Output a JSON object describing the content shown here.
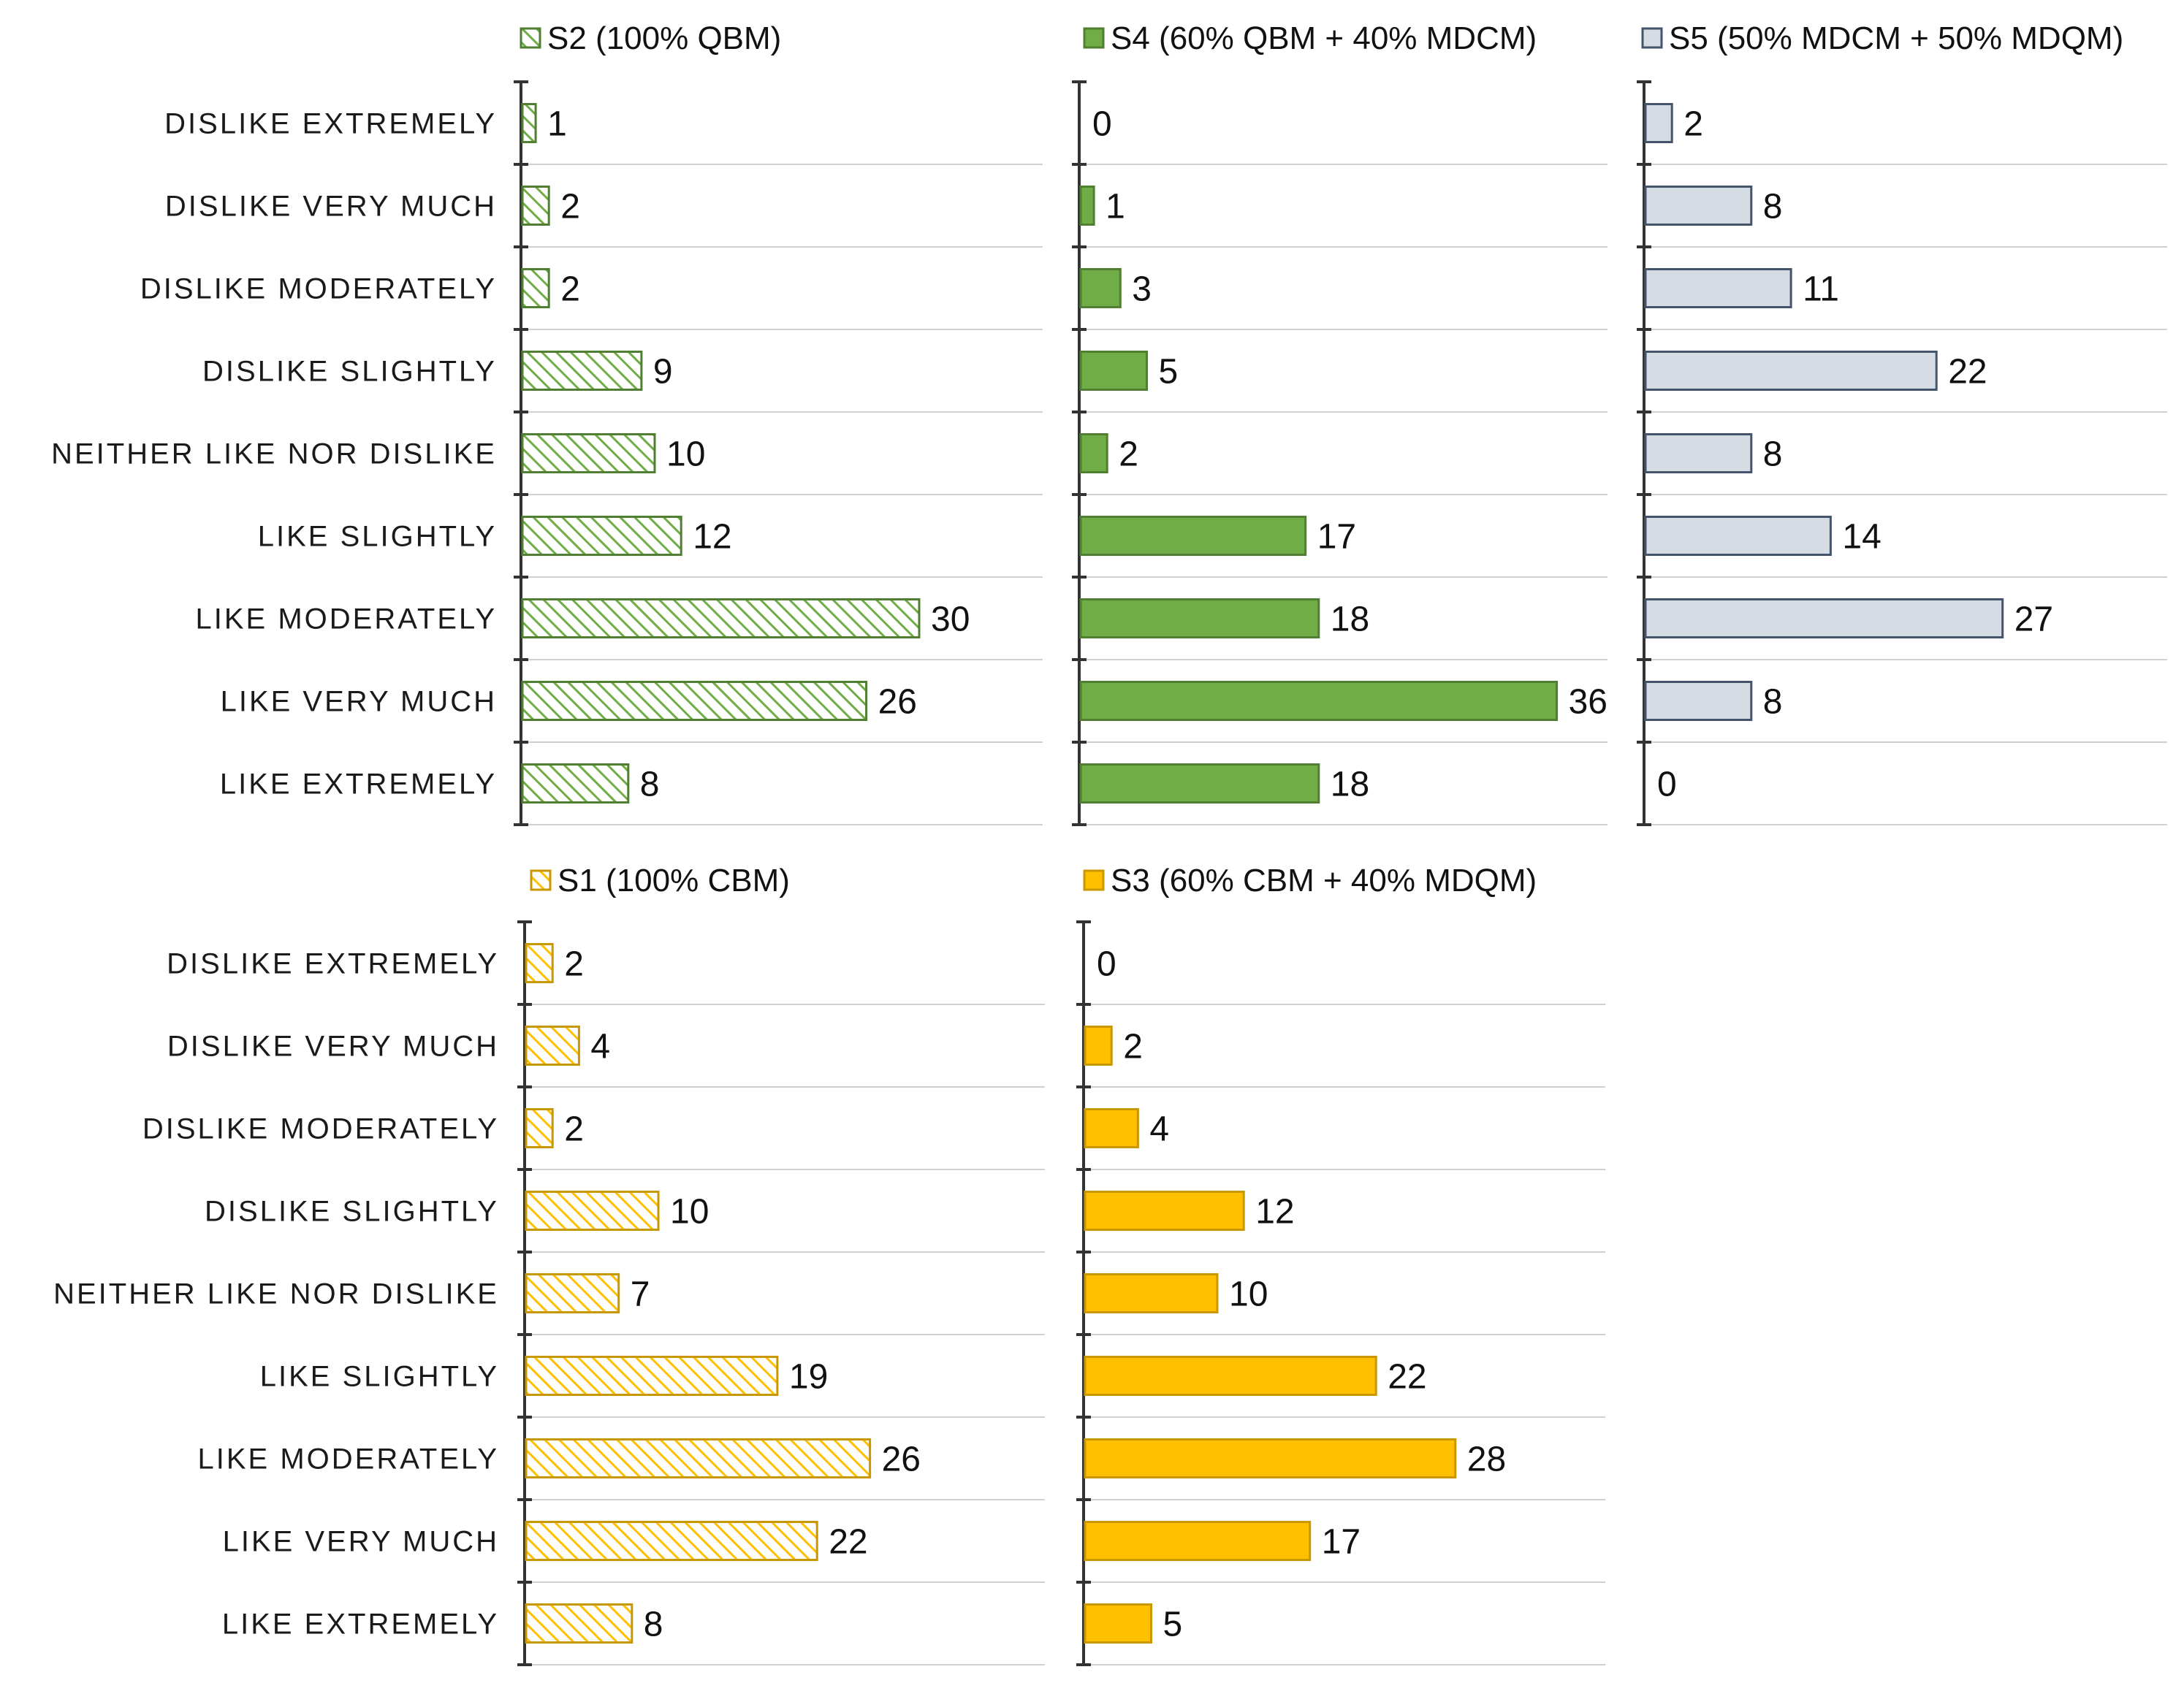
{
  "chart_data": [
    {
      "type": "bar",
      "orientation": "horizontal",
      "title": "",
      "xlabel": "",
      "ylabel": "",
      "xlim": [
        0,
        40
      ],
      "grid": "horizontal",
      "legend_position": "top",
      "series": [
        {
          "name": "S2 (100% QBM)",
          "color": "#70ad47",
          "pattern": "hatched",
          "values": [
            1,
            2,
            2,
            9,
            10,
            12,
            30,
            26,
            8
          ]
        }
      ]
    },
    {
      "type": "bar",
      "orientation": "horizontal",
      "title": "",
      "xlabel": "",
      "ylabel": "",
      "xlim": [
        0,
        40
      ],
      "grid": "horizontal",
      "legend_position": "top",
      "series": [
        {
          "name": "S4 (60% QBM + 40% MDCM)",
          "color": "#70ad47",
          "pattern": "solid",
          "values": [
            0,
            1,
            3,
            5,
            2,
            17,
            18,
            36,
            18
          ]
        }
      ]
    },
    {
      "type": "bar",
      "orientation": "horizontal",
      "title": "",
      "xlabel": "",
      "ylabel": "",
      "xlim": [
        0,
        40
      ],
      "grid": "horizontal",
      "legend_position": "top",
      "series": [
        {
          "name": "S5 (50% MDCM + 50% MDQM)",
          "color": "#d6dce4",
          "pattern": "solid",
          "values": [
            2,
            8,
            11,
            22,
            8,
            14,
            27,
            8,
            0
          ]
        }
      ]
    },
    {
      "type": "bar",
      "orientation": "horizontal",
      "title": "",
      "xlabel": "",
      "ylabel": "",
      "xlim": [
        0,
        40
      ],
      "grid": "horizontal",
      "legend_position": "top",
      "series": [
        {
          "name": "S1 (100% CBM)",
          "color": "#ffc000",
          "pattern": "hatched",
          "values": [
            2,
            4,
            2,
            10,
            7,
            19,
            26,
            22,
            8
          ]
        }
      ]
    },
    {
      "type": "bar",
      "orientation": "horizontal",
      "title": "",
      "xlabel": "",
      "ylabel": "",
      "xlim": [
        0,
        40
      ],
      "grid": "horizontal",
      "legend_position": "top",
      "series": [
        {
          "name": "S3 (60% CBM + 40% MDQM)",
          "color": "#ffc000",
          "pattern": "solid",
          "values": [
            0,
            2,
            4,
            12,
            10,
            22,
            28,
            17,
            5
          ]
        }
      ]
    }
  ],
  "categories": [
    "DISLIKE EXTREMELY",
    "DISLIKE VERY MUCH",
    "DISLIKE MODERATELY",
    "DISLIKE SLIGHTLY",
    "NEITHER LIKE NOR DISLIKE",
    "LIKE SLIGHTLY",
    "LIKE MODERATELY",
    "LIKE VERY MUCH",
    "LIKE EXTREMELY"
  ],
  "colors": {
    "green": "#70ad47",
    "green_border": "#507e32",
    "blue_gray_fill": "#d6dce4",
    "blue_gray_border": "#44546a",
    "yellow": "#ffc000",
    "yellow_border": "#c99700",
    "grid": "#d0d0d0",
    "axis": "#333333"
  }
}
